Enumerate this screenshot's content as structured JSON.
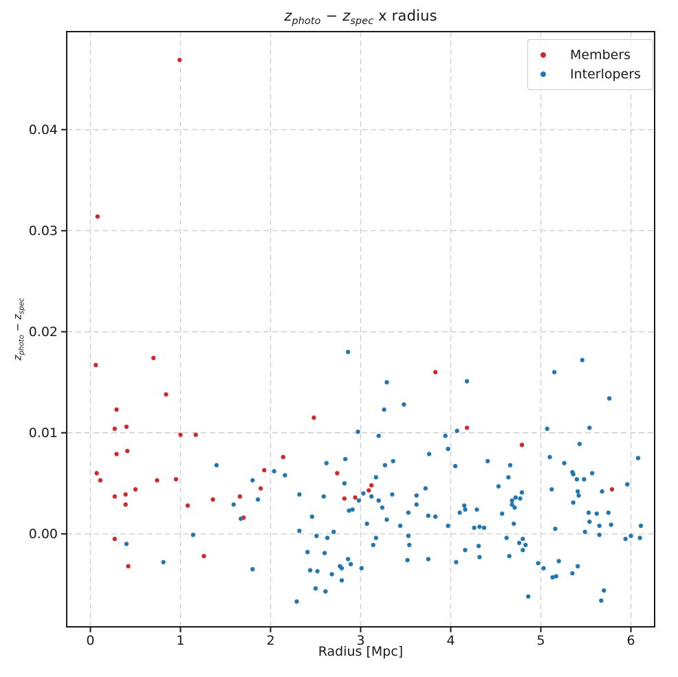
{
  "figure": {
    "title_plain": "z_photo − z_spec x radius",
    "title_parts": [
      {
        "text": "z",
        "italic": true
      },
      {
        "text": "photo",
        "italic": true,
        "sub": true
      },
      {
        "text": " − "
      },
      {
        "text": "z",
        "italic": true
      },
      {
        "text": "spec",
        "italic": true,
        "sub": true
      },
      {
        "text": " x radius"
      }
    ],
    "ylabel_parts": [
      {
        "text": "z",
        "italic": true
      },
      {
        "text": "photo",
        "italic": true,
        "sub": true
      },
      {
        "text": " − "
      },
      {
        "text": "z",
        "italic": true
      },
      {
        "text": "spec",
        "italic": true,
        "sub": true
      }
    ]
  },
  "chart_data": {
    "type": "scatter",
    "title": "z_photo − z_spec x radius",
    "xlabel": "Radius [Mpc]",
    "ylabel": "z_photo − z_spec",
    "xlim": [
      -0.263,
      6.263
    ],
    "ylim": [
      -0.0092,
      0.0497
    ],
    "xticks": [
      0,
      1,
      2,
      3,
      4,
      5,
      6
    ],
    "xtick_labels": [
      "0",
      "1",
      "2",
      "3",
      "4",
      "5",
      "6"
    ],
    "yticks": [
      0.0,
      0.01,
      0.02,
      0.03,
      0.04
    ],
    "ytick_labels": [
      "0.00",
      "0.01",
      "0.02",
      "0.03",
      "0.04"
    ],
    "grid": true,
    "grid_style": "dashed",
    "grid_color": "#cccccc",
    "spine_color": "#1a1a1a",
    "legend_position": "upper right",
    "series": [
      {
        "name": "Members",
        "color": "#d62728",
        "points": [
          [
            0.99,
            0.0469
          ],
          [
            0.08,
            0.0314
          ],
          [
            0.7,
            0.0174
          ],
          [
            0.06,
            0.0167
          ],
          [
            0.84,
            0.0138
          ],
          [
            0.29,
            0.0123
          ],
          [
            0.27,
            0.0104
          ],
          [
            0.4,
            0.0106
          ],
          [
            1.0,
            0.0098
          ],
          [
            1.17,
            0.0098
          ],
          [
            0.29,
            0.0079
          ],
          [
            0.41,
            0.0082
          ],
          [
            0.07,
            0.006
          ],
          [
            0.11,
            0.0053
          ],
          [
            0.74,
            0.0053
          ],
          [
            0.95,
            0.0054
          ],
          [
            1.93,
            0.0063
          ],
          [
            1.89,
            0.0045
          ],
          [
            0.5,
            0.0044
          ],
          [
            0.27,
            0.0037
          ],
          [
            0.39,
            0.0039
          ],
          [
            0.39,
            0.0029
          ],
          [
            1.08,
            0.0028
          ],
          [
            1.36,
            0.0034
          ],
          [
            1.66,
            0.0037
          ],
          [
            1.7,
            0.0016
          ],
          [
            0.27,
            -0.0005
          ],
          [
            0.42,
            -0.0032
          ],
          [
            1.26,
            -0.0022
          ],
          [
            2.14,
            0.0076
          ],
          [
            2.48,
            0.0115
          ],
          [
            2.74,
            0.006
          ],
          [
            2.82,
            0.0035
          ],
          [
            2.94,
            0.0036
          ],
          [
            3.09,
            0.0043
          ],
          [
            3.12,
            0.0048
          ],
          [
            3.83,
            0.016
          ],
          [
            4.18,
            0.0105
          ],
          [
            4.79,
            0.0088
          ],
          [
            5.79,
            0.0044
          ]
        ]
      },
      {
        "name": "Interlopers",
        "color": "#1f77b4",
        "points": [
          [
            2.86,
            0.018
          ],
          [
            4.18,
            0.0151
          ],
          [
            3.29,
            0.015
          ],
          [
            3.48,
            0.0128
          ],
          [
            3.26,
            0.0123
          ],
          [
            5.46,
            0.0172
          ],
          [
            5.15,
            0.016
          ],
          [
            5.76,
            0.0134
          ],
          [
            2.97,
            0.0101
          ],
          [
            4.07,
            0.0102
          ],
          [
            5.07,
            0.0104
          ],
          [
            5.54,
            0.0105
          ],
          [
            1.4,
            0.0068
          ],
          [
            1.8,
            0.0053
          ],
          [
            2.04,
            0.0062
          ],
          [
            2.16,
            0.0058
          ],
          [
            1.86,
            0.0034
          ],
          [
            1.59,
            0.0029
          ],
          [
            1.67,
            0.0015
          ],
          [
            1.14,
            -0.0001
          ],
          [
            0.4,
            -0.001
          ],
          [
            0.81,
            -0.0028
          ],
          [
            1.8,
            -0.0035
          ],
          [
            3.2,
            0.0097
          ],
          [
            3.94,
            0.0097
          ],
          [
            3.97,
            0.0084
          ],
          [
            3.76,
            0.0079
          ],
          [
            2.62,
            0.007
          ],
          [
            2.83,
            0.0074
          ],
          [
            3.27,
            0.0068
          ],
          [
            3.36,
            0.0072
          ],
          [
            2.82,
            0.005
          ],
          [
            3.17,
            0.0056
          ],
          [
            2.32,
            0.0039
          ],
          [
            2.59,
            0.0037
          ],
          [
            3.03,
            0.004
          ],
          [
            2.98,
            0.0033
          ],
          [
            3.12,
            0.0037
          ],
          [
            3.2,
            0.0033
          ],
          [
            3.35,
            0.0039
          ],
          [
            3.24,
            0.0026
          ],
          [
            2.87,
            0.0023
          ],
          [
            2.91,
            0.0024
          ],
          [
            2.46,
            0.0017
          ],
          [
            3.62,
            0.0038
          ],
          [
            3.62,
            0.0029
          ],
          [
            3.72,
            0.0045
          ],
          [
            3.75,
            0.0018
          ],
          [
            3.83,
            0.0017
          ],
          [
            3.53,
            0.0021
          ],
          [
            3.29,
            0.0014
          ],
          [
            3.07,
            0.001
          ],
          [
            3.44,
            0.0008
          ],
          [
            4.15,
            0.0028
          ],
          [
            4.16,
            0.0024
          ],
          [
            4.1,
            0.0021
          ],
          [
            3.97,
            0.0008
          ],
          [
            2.32,
            0.0003
          ],
          [
            2.51,
            -0.0002
          ],
          [
            2.63,
            -0.0004
          ],
          [
            2.7,
            0.0002
          ],
          [
            3.17,
            -0.0004
          ],
          [
            3.14,
            -0.0011
          ],
          [
            3.53,
            -0.0002
          ],
          [
            3.54,
            -0.0011
          ],
          [
            2.41,
            -0.0018
          ],
          [
            2.6,
            -0.0019
          ],
          [
            2.86,
            -0.0025
          ],
          [
            2.89,
            -0.003
          ],
          [
            2.77,
            -0.0032
          ],
          [
            2.79,
            -0.0034
          ],
          [
            3.01,
            -0.0034
          ],
          [
            3.52,
            -0.0026
          ],
          [
            3.75,
            -0.0025
          ],
          [
            4.06,
            -0.0028
          ],
          [
            2.44,
            -0.0036
          ],
          [
            2.52,
            -0.0037
          ],
          [
            2.68,
            -0.004
          ],
          [
            2.79,
            -0.0046
          ],
          [
            2.5,
            -0.0054
          ],
          [
            2.61,
            -0.0057
          ],
          [
            2.29,
            -0.0067
          ],
          [
            5.43,
            0.0089
          ],
          [
            4.41,
            0.0072
          ],
          [
            5.1,
            0.0076
          ],
          [
            6.08,
            0.0075
          ],
          [
            4.05,
            0.0067
          ],
          [
            5.26,
            0.007
          ],
          [
            4.66,
            0.0068
          ],
          [
            4.64,
            0.0056
          ],
          [
            4.53,
            0.0047
          ],
          [
            5.35,
            0.0061
          ],
          [
            5.36,
            0.0059
          ],
          [
            5.4,
            0.0054
          ],
          [
            5.48,
            0.0054
          ],
          [
            5.57,
            0.006
          ],
          [
            5.96,
            0.0049
          ],
          [
            5.68,
            0.0042
          ],
          [
            5.12,
            0.0044
          ],
          [
            5.41,
            0.0042
          ],
          [
            5.42,
            0.0038
          ],
          [
            4.79,
            0.0041
          ],
          [
            4.72,
            0.0036
          ],
          [
            4.77,
            0.0035
          ],
          [
            4.68,
            0.0033
          ],
          [
            4.68,
            0.0029
          ],
          [
            4.71,
            0.0026
          ],
          [
            4.29,
            0.0024
          ],
          [
            4.57,
            0.002
          ],
          [
            5.36,
            0.0031
          ],
          [
            5.53,
            0.0021
          ],
          [
            5.62,
            0.002
          ],
          [
            5.75,
            0.0021
          ],
          [
            5.54,
            0.0012
          ],
          [
            5.65,
            0.0008
          ],
          [
            5.78,
            0.0009
          ],
          [
            4.7,
            0.001
          ],
          [
            4.26,
            0.0006
          ],
          [
            4.32,
            0.0007
          ],
          [
            4.37,
            0.0006
          ],
          [
            5.16,
            0.0005
          ],
          [
            5.49,
            0.0002
          ],
          [
            5.65,
            -0.0001
          ],
          [
            6.11,
            0.0008
          ],
          [
            6.1,
            -0.0004
          ],
          [
            6.0,
            -0.0002
          ],
          [
            5.94,
            -0.0005
          ],
          [
            4.62,
            -0.0004
          ],
          [
            4.8,
            -0.0005
          ],
          [
            4.76,
            -0.0009
          ],
          [
            4.83,
            -0.0011
          ],
          [
            4.8,
            -0.0016
          ],
          [
            4.16,
            -0.0016
          ],
          [
            4.31,
            -0.0012
          ],
          [
            4.32,
            -0.0023
          ],
          [
            4.65,
            -0.0022
          ],
          [
            4.97,
            -0.0029
          ],
          [
            5.03,
            -0.0034
          ],
          [
            5.2,
            -0.0027
          ],
          [
            5.17,
            -0.0042
          ],
          [
            5.13,
            -0.0043
          ],
          [
            5.35,
            -0.0039
          ],
          [
            5.41,
            -0.0032
          ],
          [
            5.7,
            -0.0056
          ],
          [
            5.67,
            -0.0066
          ],
          [
            4.86,
            -0.0062
          ]
        ]
      }
    ]
  },
  "legend": {
    "items": [
      {
        "label": "Members"
      },
      {
        "label": "Interlopers"
      }
    ]
  }
}
